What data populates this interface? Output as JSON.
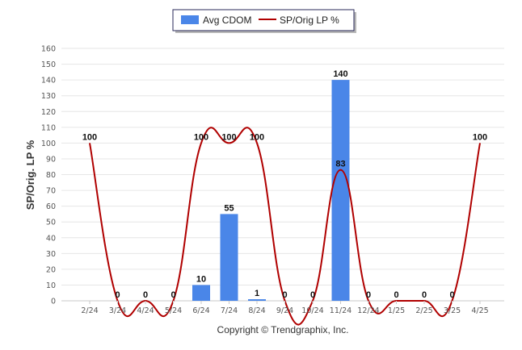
{
  "chart_data": {
    "type": "bar",
    "categories": [
      "2/24",
      "3/24",
      "4/24",
      "5/24",
      "6/24",
      "7/24",
      "8/24",
      "9/24",
      "10/24",
      "11/24",
      "12/24",
      "1/25",
      "2/25",
      "3/25",
      "4/25"
    ],
    "series": [
      {
        "name": "Avg CDOM",
        "type": "bar",
        "color": "#4a86e8",
        "values": [
          0,
          0,
          0,
          0,
          10,
          55,
          1,
          0,
          0,
          140,
          0,
          0,
          0,
          0,
          0
        ]
      },
      {
        "name": "SP/Orig LP %",
        "type": "line",
        "color": "#b00000",
        "values": [
          100,
          0,
          0,
          0,
          100,
          100,
          100,
          0,
          0,
          83,
          0,
          0,
          0,
          0,
          100
        ]
      }
    ],
    "ylabel": "SP/Orig. LP %",
    "ylim": [
      0,
      160
    ],
    "yticks": [
      0,
      10,
      20,
      30,
      40,
      50,
      60,
      70,
      80,
      90,
      100,
      110,
      120,
      130,
      140,
      150,
      160
    ],
    "grid": true,
    "legend_position": "top-center"
  },
  "footer": {
    "copyright": "Copyright © Trendgraphix, Inc."
  }
}
